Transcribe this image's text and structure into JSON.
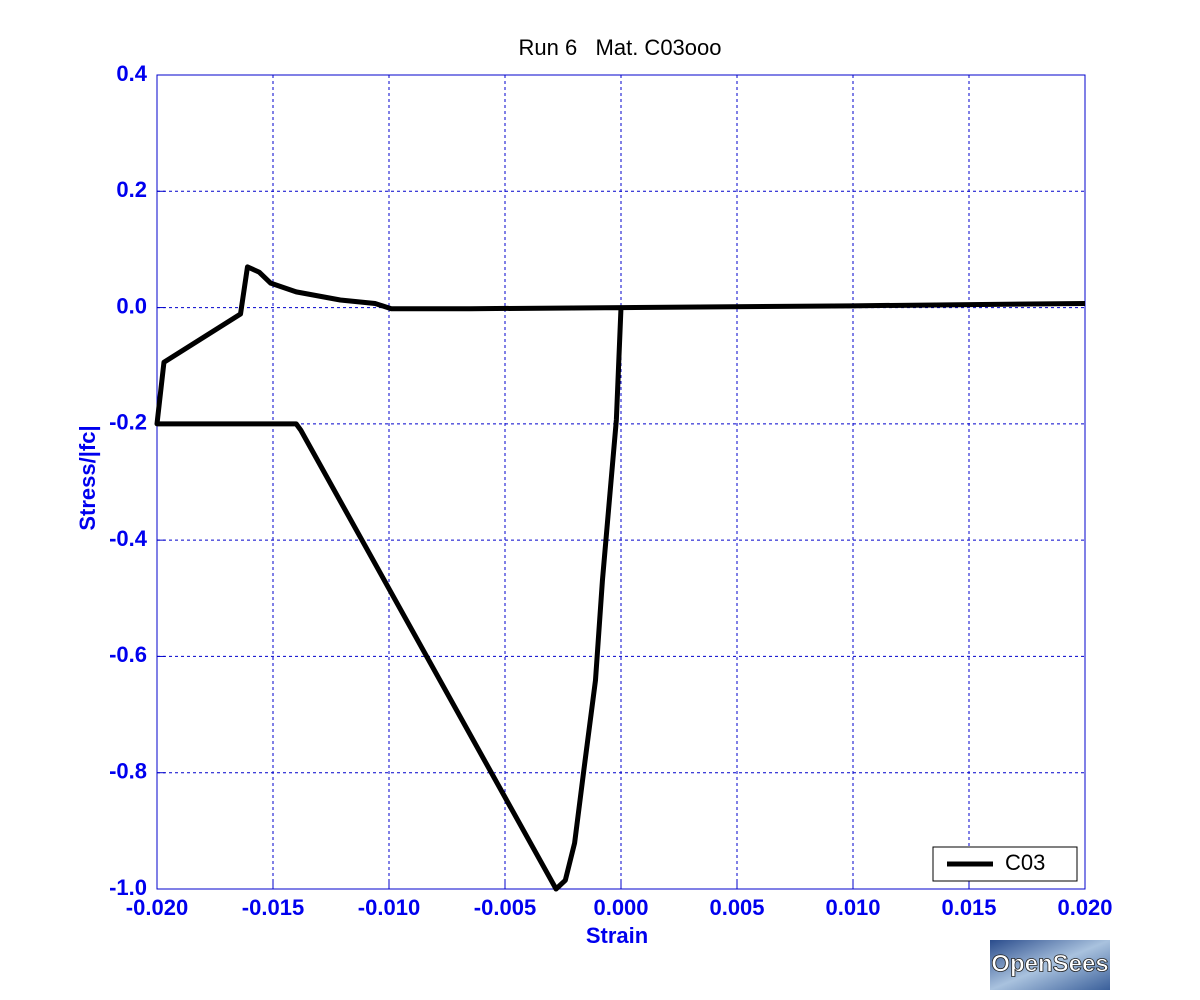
{
  "chart_data": {
    "type": "line",
    "title": "Run 6   Mat. C03ooo",
    "xlabel": "Strain",
    "ylabel": "Stress/|fc|",
    "x": [
      0.0,
      -0.0002,
      -0.0005,
      -0.0008,
      -0.0011,
      -0.0016,
      -0.002,
      -0.0024,
      -0.0028,
      -0.0138,
      -0.014,
      -0.02,
      -0.0197,
      -0.0164,
      -0.0161,
      -0.0156,
      -0.0151,
      -0.014,
      -0.0121,
      -0.0106,
      -0.0099,
      -0.0065,
      0.0,
      0.0099,
      0.02
    ],
    "series": [
      {
        "name": "C03",
        "color": "#000000",
        "values": [
          0.0,
          -0.193,
          -0.331,
          -0.469,
          -0.641,
          -0.795,
          -0.921,
          -0.985,
          -1.0,
          -0.211,
          -0.2,
          -0.2,
          -0.094,
          -0.011,
          0.07,
          0.061,
          0.042,
          0.027,
          0.013,
          0.007,
          -0.002,
          -0.002,
          0.0,
          0.003,
          0.007
        ]
      }
    ],
    "xlim": [
      -0.02,
      0.02
    ],
    "ylim": [
      -1.0,
      0.4
    ],
    "xticks": [
      {
        "value": -0.02,
        "label": "-0.020"
      },
      {
        "value": -0.015,
        "label": "-0.015"
      },
      {
        "value": -0.01,
        "label": "-0.010"
      },
      {
        "value": -0.005,
        "label": "-0.005"
      },
      {
        "value": 0,
        "label": "0.000"
      },
      {
        "value": 0.005,
        "label": "0.005"
      },
      {
        "value": 0.01,
        "label": "0.010"
      },
      {
        "value": 0.015,
        "label": "0.015"
      },
      {
        "value": 0.02,
        "label": "0.020"
      }
    ],
    "yticks": [
      {
        "value": -1,
        "label": "-1.0"
      },
      -0.8,
      -0.6,
      -0.4,
      -0.2,
      {
        "value": 0,
        "label": "0.0"
      },
      0.2,
      0.4
    ],
    "grid": true,
    "legend": "lower right"
  },
  "logo_text": "OpenSees"
}
